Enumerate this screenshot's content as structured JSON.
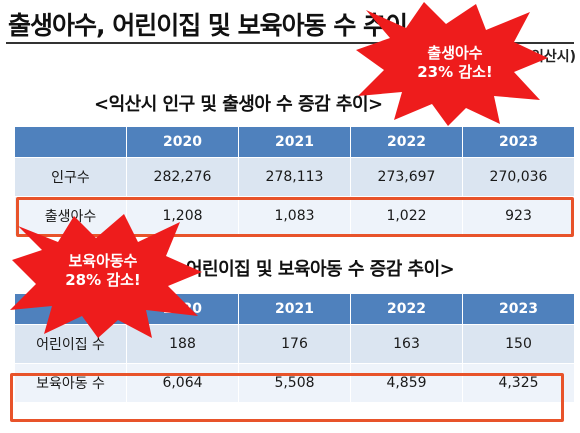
{
  "title": "출생아수, 어린이집 및 보육아동 수 추이",
  "source": "익산시)",
  "table1": {
    "caption": "<익산시 인구 및 출생아 수 증감 추이>",
    "years": [
      "2020",
      "2021",
      "2022",
      "2023"
    ],
    "rows": [
      {
        "label": "인구수",
        "values": [
          "282,276",
          "278,113",
          "273,697",
          "270,036"
        ]
      },
      {
        "label": "출생아수",
        "values": [
          "1,208",
          "1,083",
          "1,022",
          "923"
        ]
      }
    ]
  },
  "table2": {
    "caption": "어린이집 및 보육아동 수 증감 추이>",
    "years": [
      "2020",
      "2021",
      "2022",
      "2023"
    ],
    "rows": [
      {
        "label": "어린이집 수",
        "values": [
          "188",
          "176",
          "163",
          "150"
        ]
      },
      {
        "label": "보육아동 수",
        "values": [
          "6,064",
          "5,508",
          "4,859",
          "4,325"
        ]
      }
    ]
  },
  "callouts": {
    "births": {
      "line1": "출생아수",
      "line2": "23% 감소!"
    },
    "children": {
      "line1": "보육아동수",
      "line2": "28% 감소!"
    }
  },
  "colors": {
    "header": "#4f81bd",
    "row1": "#dbe5f1",
    "row2": "#eef3fa",
    "highlight": "#e8532a",
    "burst": "#ee1c1c"
  }
}
